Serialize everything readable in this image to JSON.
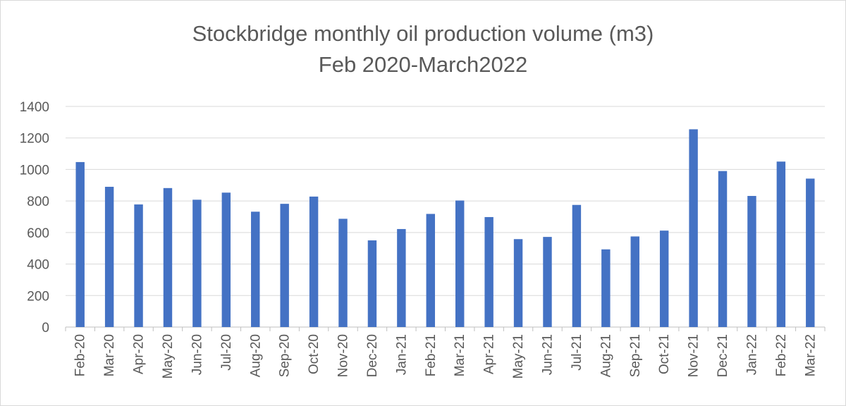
{
  "chart_data": {
    "type": "bar",
    "title_lines": [
      "Stockbridge monthly oil production volume (m3)",
      "Feb 2020-March2022"
    ],
    "xlabel": "",
    "ylabel": "",
    "ylim": [
      0,
      1400
    ],
    "yticks": [
      0,
      200,
      400,
      600,
      800,
      1000,
      1200,
      1400
    ],
    "grid": true,
    "legend": "none",
    "bar_color": "#4472C4",
    "categories": [
      "Feb-20",
      "Mar-20",
      "Apr-20",
      "May-20",
      "Jun-20",
      "Jul-20",
      "Aug-20",
      "Sep-20",
      "Oct-20",
      "Nov-20",
      "Dec-20",
      "Jan-21",
      "Feb-21",
      "Mar-21",
      "Apr-21",
      "May-21",
      "Jun-21",
      "Jul-21",
      "Aug-21",
      "Sep-21",
      "Oct-21",
      "Nov-21",
      "Dec-21",
      "Jan-22",
      "Feb-22",
      "Mar-22"
    ],
    "values": [
      1047,
      890,
      778,
      882,
      808,
      853,
      732,
      782,
      828,
      687,
      550,
      622,
      718,
      803,
      698,
      558,
      572,
      775,
      493,
      575,
      612,
      1255,
      990,
      832,
      1050,
      942
    ]
  }
}
